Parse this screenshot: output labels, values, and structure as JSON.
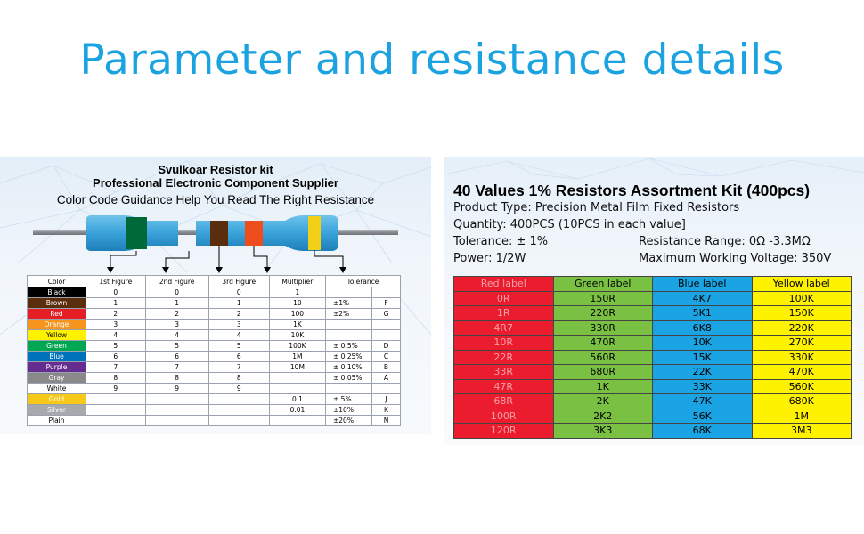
{
  "title": "Parameter and resistance details",
  "left": {
    "kit_name": "Svulkoar  Resistor kit",
    "supplier": "Professional Electronic Component Supplier",
    "guidance": "Color Code Guidance Help You Read The Right Resistance",
    "headers": [
      "Color",
      "1st Figure",
      "2nd Figure",
      "3rd Figure",
      "Multiplier",
      "Tolerance"
    ],
    "rows": [
      {
        "name": "Black",
        "bg": "#000000",
        "fg": "#ffffff",
        "f1": "0",
        "f2": "0",
        "f3": "0",
        "mult": "1",
        "tol": "",
        "code": ""
      },
      {
        "name": "Brown",
        "bg": "#5a2d0c",
        "fg": "#ffffff",
        "f1": "1",
        "f2": "1",
        "f3": "1",
        "mult": "10",
        "tol": "±1%",
        "code": "F"
      },
      {
        "name": "Red",
        "bg": "#e31e24",
        "fg": "#ffffff",
        "f1": "2",
        "f2": "2",
        "f3": "2",
        "mult": "100",
        "tol": "±2%",
        "code": "G"
      },
      {
        "name": "Orange",
        "bg": "#f7941d",
        "fg": "#ffffff",
        "f1": "3",
        "f2": "3",
        "f3": "3",
        "mult": "1K",
        "tol": "",
        "code": ""
      },
      {
        "name": "Yellow",
        "bg": "#fff200",
        "fg": "#000000",
        "f1": "4",
        "f2": "4",
        "f3": "4",
        "mult": "10K",
        "tol": "",
        "code": ""
      },
      {
        "name": "Green",
        "bg": "#00a651",
        "fg": "#ffffff",
        "f1": "5",
        "f2": "5",
        "f3": "5",
        "mult": "100K",
        "tol": "± 0.5%",
        "code": "D"
      },
      {
        "name": "Blue",
        "bg": "#0072bc",
        "fg": "#ffffff",
        "f1": "6",
        "f2": "6",
        "f3": "6",
        "mult": "1M",
        "tol": "± 0.25%",
        "code": "C"
      },
      {
        "name": "Purple",
        "bg": "#662d91",
        "fg": "#ffffff",
        "f1": "7",
        "f2": "7",
        "f3": "7",
        "mult": "10M",
        "tol": "± 0.10%",
        "code": "B"
      },
      {
        "name": "Gray",
        "bg": "#898989",
        "fg": "#ffffff",
        "f1": "8",
        "f2": "8",
        "f3": "8",
        "mult": "",
        "tol": "± 0.05%",
        "code": "A"
      },
      {
        "name": "White",
        "bg": "#ffffff",
        "fg": "#000000",
        "f1": "9",
        "f2": "9",
        "f3": "9",
        "mult": "",
        "tol": "",
        "code": ""
      },
      {
        "name": "Gold",
        "bg": "#f6c918",
        "fg": "#ffffff",
        "f1": "",
        "f2": "",
        "f3": "",
        "mult": "0.1",
        "tol": "± 5%",
        "code": "J"
      },
      {
        "name": "Silver",
        "bg": "#a7a9ac",
        "fg": "#ffffff",
        "f1": "",
        "f2": "",
        "f3": "",
        "mult": "0.01",
        "tol": "±10%",
        "code": "K"
      },
      {
        "name": "Plain",
        "bg": "#ffffff",
        "fg": "#000000",
        "f1": "",
        "f2": "",
        "f3": "",
        "mult": "",
        "tol": "±20%",
        "code": "N"
      }
    ]
  },
  "right": {
    "heading": "40 Values 1% Resistors Assortment Kit (400pcs)",
    "product_type": "Product Type: Precision Metal Film Fixed Resistors",
    "quantity": "Quantity: 400PCS (10PCS in each value]",
    "tolerance": "Tolerance: ± 1%",
    "range": "Resistance Range: 0Ω -3.3MΩ",
    "power": "Power: 1/2W",
    "voltage": "Maximum Working Voltage: 350V",
    "headers": [
      "Red label",
      "Green label",
      "Blue label",
      "Yellow label"
    ],
    "rows": [
      [
        "0R",
        "150R",
        "4K7",
        "100K"
      ],
      [
        "1R",
        "220R",
        "5K1",
        "150K"
      ],
      [
        "4R7",
        "330R",
        "6K8",
        "220K"
      ],
      [
        "10R",
        "470R",
        "10K",
        "270K"
      ],
      [
        "22R",
        "560R",
        "15K",
        "330K"
      ],
      [
        "33R",
        "680R",
        "22K",
        "470K"
      ],
      [
        "47R",
        "1K",
        "33K",
        "560K"
      ],
      [
        "68R",
        "2K",
        "47K",
        "680K"
      ],
      [
        "100R",
        "2K2",
        "56K",
        "1M"
      ],
      [
        "120R",
        "3K3",
        "68K",
        "3M3"
      ]
    ]
  }
}
